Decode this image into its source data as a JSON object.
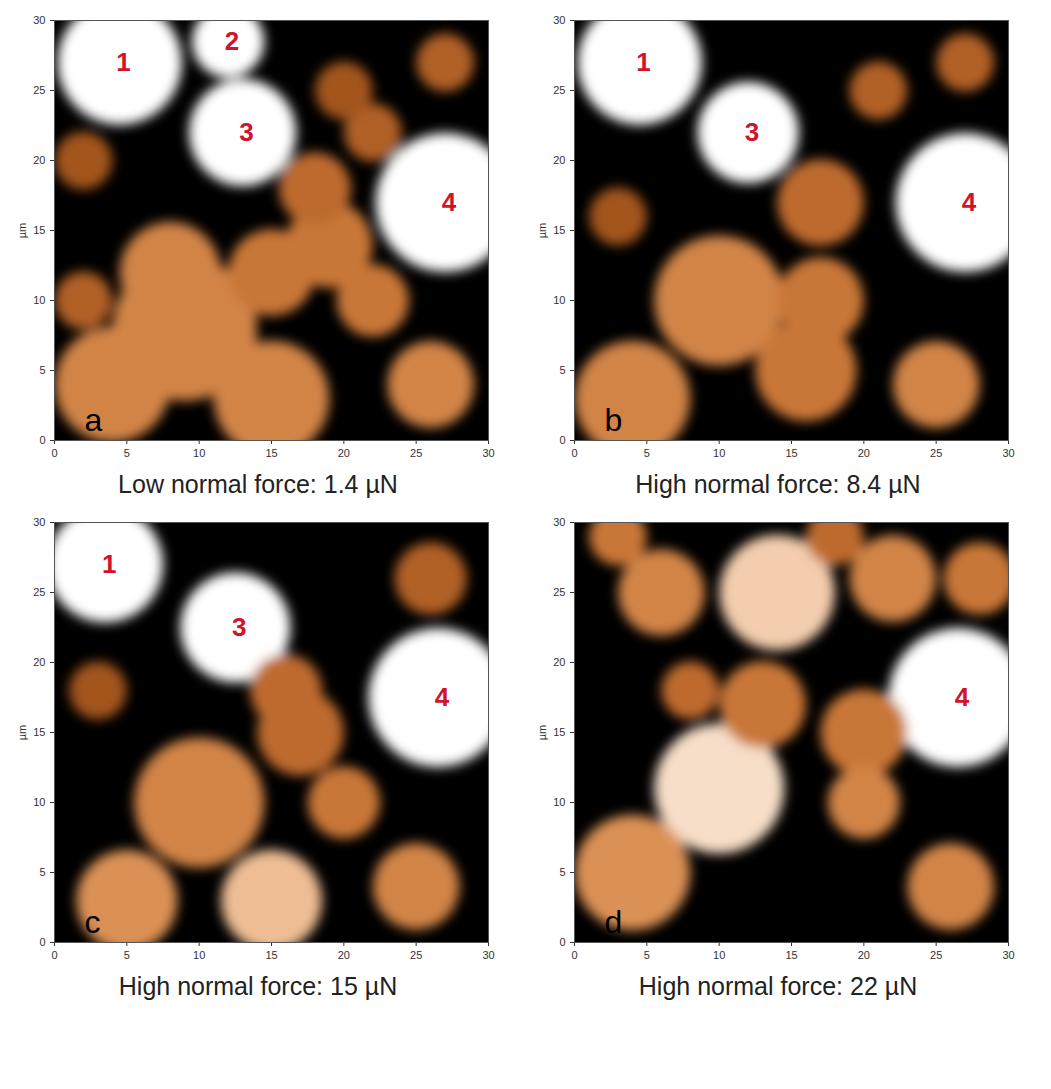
{
  "chart_data": [
    {
      "type": "image",
      "letter": "a",
      "caption": "Low normal force: 1.4 µN",
      "y_label": "µm",
      "xlim": [
        0,
        30
      ],
      "ylim": [
        0,
        30
      ],
      "xticks": [
        0,
        5,
        10,
        15,
        20,
        25,
        30
      ],
      "yticks": [
        0,
        5,
        10,
        15,
        20,
        25,
        30
      ],
      "features": [
        {
          "label": null,
          "x": 9,
          "y": 8,
          "r": 5,
          "height": 0.6
        },
        {
          "label": null,
          "x": 4,
          "y": 4,
          "r": 4,
          "height": 0.6
        },
        {
          "label": null,
          "x": 15,
          "y": 3,
          "r": 4,
          "height": 0.6
        },
        {
          "label": null,
          "x": 19,
          "y": 14,
          "r": 3,
          "height": 0.55
        },
        {
          "label": null,
          "x": 22,
          "y": 10,
          "r": 2.5,
          "height": 0.55
        },
        {
          "label": null,
          "x": 26,
          "y": 4,
          "r": 3,
          "height": 0.6
        },
        {
          "label": null,
          "x": 8,
          "y": 12,
          "r": 3.5,
          "height": 0.6
        },
        {
          "label": null,
          "x": 15,
          "y": 12,
          "r": 3,
          "height": 0.55
        },
        {
          "label": null,
          "x": 22,
          "y": 22,
          "r": 2,
          "height": 0.45
        },
        {
          "label": null,
          "x": 27,
          "y": 27,
          "r": 2,
          "height": 0.45
        },
        {
          "label": null,
          "x": 18,
          "y": 18,
          "r": 2.5,
          "height": 0.5
        },
        {
          "label": null,
          "x": 2,
          "y": 20,
          "r": 2,
          "height": 0.4
        },
        {
          "label": null,
          "x": 20,
          "y": 25,
          "r": 2,
          "height": 0.4
        },
        {
          "label": null,
          "x": 2,
          "y": 10,
          "r": 2,
          "height": 0.45
        },
        {
          "label": "1",
          "x": 4.5,
          "y": 27,
          "r": 4.3,
          "height": 1
        },
        {
          "label": "2",
          "x": 12,
          "y": 28.5,
          "r": 2.5,
          "height": 1
        },
        {
          "label": "3",
          "x": 13,
          "y": 22,
          "r": 3.7,
          "height": 1
        },
        {
          "label": "4",
          "x": 27,
          "y": 17,
          "r": 4.8,
          "height": 1
        }
      ]
    },
    {
      "type": "image",
      "letter": "b",
      "caption": "High normal force: 8.4 µN",
      "y_label": "µm",
      "xlim": [
        0,
        30
      ],
      "ylim": [
        0,
        30
      ],
      "xticks": [
        0,
        5,
        10,
        15,
        20,
        25,
        30
      ],
      "yticks": [
        0,
        5,
        10,
        15,
        20,
        25,
        30
      ],
      "features": [
        {
          "label": null,
          "x": 10,
          "y": 10,
          "r": 4.5,
          "height": 0.6
        },
        {
          "label": null,
          "x": 4,
          "y": 3,
          "r": 4,
          "height": 0.6
        },
        {
          "label": null,
          "x": 16,
          "y": 5,
          "r": 3.5,
          "height": 0.55
        },
        {
          "label": null,
          "x": 17,
          "y": 10,
          "r": 3,
          "height": 0.55
        },
        {
          "label": null,
          "x": 25,
          "y": 4,
          "r": 3,
          "height": 0.6
        },
        {
          "label": null,
          "x": 17,
          "y": 17,
          "r": 3,
          "height": 0.5
        },
        {
          "label": null,
          "x": 3,
          "y": 16,
          "r": 2,
          "height": 0.4
        },
        {
          "label": null,
          "x": 21,
          "y": 25,
          "r": 2,
          "height": 0.45
        },
        {
          "label": null,
          "x": 27,
          "y": 27,
          "r": 2,
          "height": 0.45
        },
        {
          "label": "1",
          "x": 4.5,
          "y": 27,
          "r": 4.3,
          "height": 1
        },
        {
          "label": "3",
          "x": 12,
          "y": 22,
          "r": 3.5,
          "height": 1
        },
        {
          "label": "4",
          "x": 27,
          "y": 17,
          "r": 4.8,
          "height": 1
        }
      ]
    },
    {
      "type": "image",
      "letter": "c",
      "caption": "High normal force: 15 µN",
      "y_label": "µm",
      "xlim": [
        0,
        30
      ],
      "ylim": [
        0,
        30
      ],
      "xticks": [
        0,
        5,
        10,
        15,
        20,
        25,
        30
      ],
      "yticks": [
        0,
        5,
        10,
        15,
        20,
        25,
        30
      ],
      "features": [
        {
          "label": null,
          "x": 10,
          "y": 10,
          "r": 4.5,
          "height": 0.6
        },
        {
          "label": null,
          "x": 5,
          "y": 3,
          "r": 3.5,
          "height": 0.65
        },
        {
          "label": null,
          "x": 15,
          "y": 3,
          "r": 3.5,
          "height": 0.8
        },
        {
          "label": null,
          "x": 20,
          "y": 10,
          "r": 2.5,
          "height": 0.55
        },
        {
          "label": null,
          "x": 17,
          "y": 15,
          "r": 3,
          "height": 0.5
        },
        {
          "label": null,
          "x": 25,
          "y": 4,
          "r": 3,
          "height": 0.6
        },
        {
          "label": null,
          "x": 26,
          "y": 26,
          "r": 2.5,
          "height": 0.45
        },
        {
          "label": null,
          "x": 16,
          "y": 18,
          "r": 2.5,
          "height": 0.5
        },
        {
          "label": null,
          "x": 3,
          "y": 18,
          "r": 2,
          "height": 0.4
        },
        {
          "label": "1",
          "x": 3.5,
          "y": 27,
          "r": 4,
          "height": 1
        },
        {
          "label": "3",
          "x": 12.5,
          "y": 22.5,
          "r": 3.8,
          "height": 1
        },
        {
          "label": "4",
          "x": 26.5,
          "y": 17.5,
          "r": 4.8,
          "height": 1
        }
      ]
    },
    {
      "type": "image",
      "letter": "d",
      "caption": "High normal force: 22 µN",
      "y_label": "µm",
      "xlim": [
        0,
        30
      ],
      "ylim": [
        0,
        30
      ],
      "xticks": [
        0,
        5,
        10,
        15,
        20,
        25,
        30
      ],
      "yticks": [
        0,
        5,
        10,
        15,
        20,
        25,
        30
      ],
      "features": [
        {
          "label": null,
          "x": 6,
          "y": 25,
          "r": 3,
          "height": 0.6
        },
        {
          "label": null,
          "x": 14,
          "y": 25,
          "r": 4,
          "height": 0.85
        },
        {
          "label": null,
          "x": 22,
          "y": 26,
          "r": 3,
          "height": 0.6
        },
        {
          "label": null,
          "x": 28,
          "y": 26,
          "r": 2.5,
          "height": 0.55
        },
        {
          "label": null,
          "x": 10,
          "y": 11,
          "r": 4.5,
          "height": 0.9
        },
        {
          "label": null,
          "x": 4,
          "y": 5,
          "r": 4,
          "height": 0.65
        },
        {
          "label": null,
          "x": 20,
          "y": 15,
          "r": 3,
          "height": 0.55
        },
        {
          "label": null,
          "x": 20,
          "y": 10,
          "r": 2.5,
          "height": 0.6
        },
        {
          "label": null,
          "x": 26,
          "y": 4,
          "r": 3,
          "height": 0.6
        },
        {
          "label": null,
          "x": 13,
          "y": 17,
          "r": 3,
          "height": 0.55
        },
        {
          "label": null,
          "x": 8,
          "y": 18,
          "r": 2,
          "height": 0.5
        },
        {
          "label": null,
          "x": 18,
          "y": 29,
          "r": 2,
          "height": 0.5
        },
        {
          "label": null,
          "x": 3,
          "y": 29,
          "r": 2,
          "height": 0.55
        },
        {
          "label": "4",
          "x": 26.5,
          "y": 17.5,
          "r": 4.8,
          "height": 1
        }
      ]
    }
  ]
}
